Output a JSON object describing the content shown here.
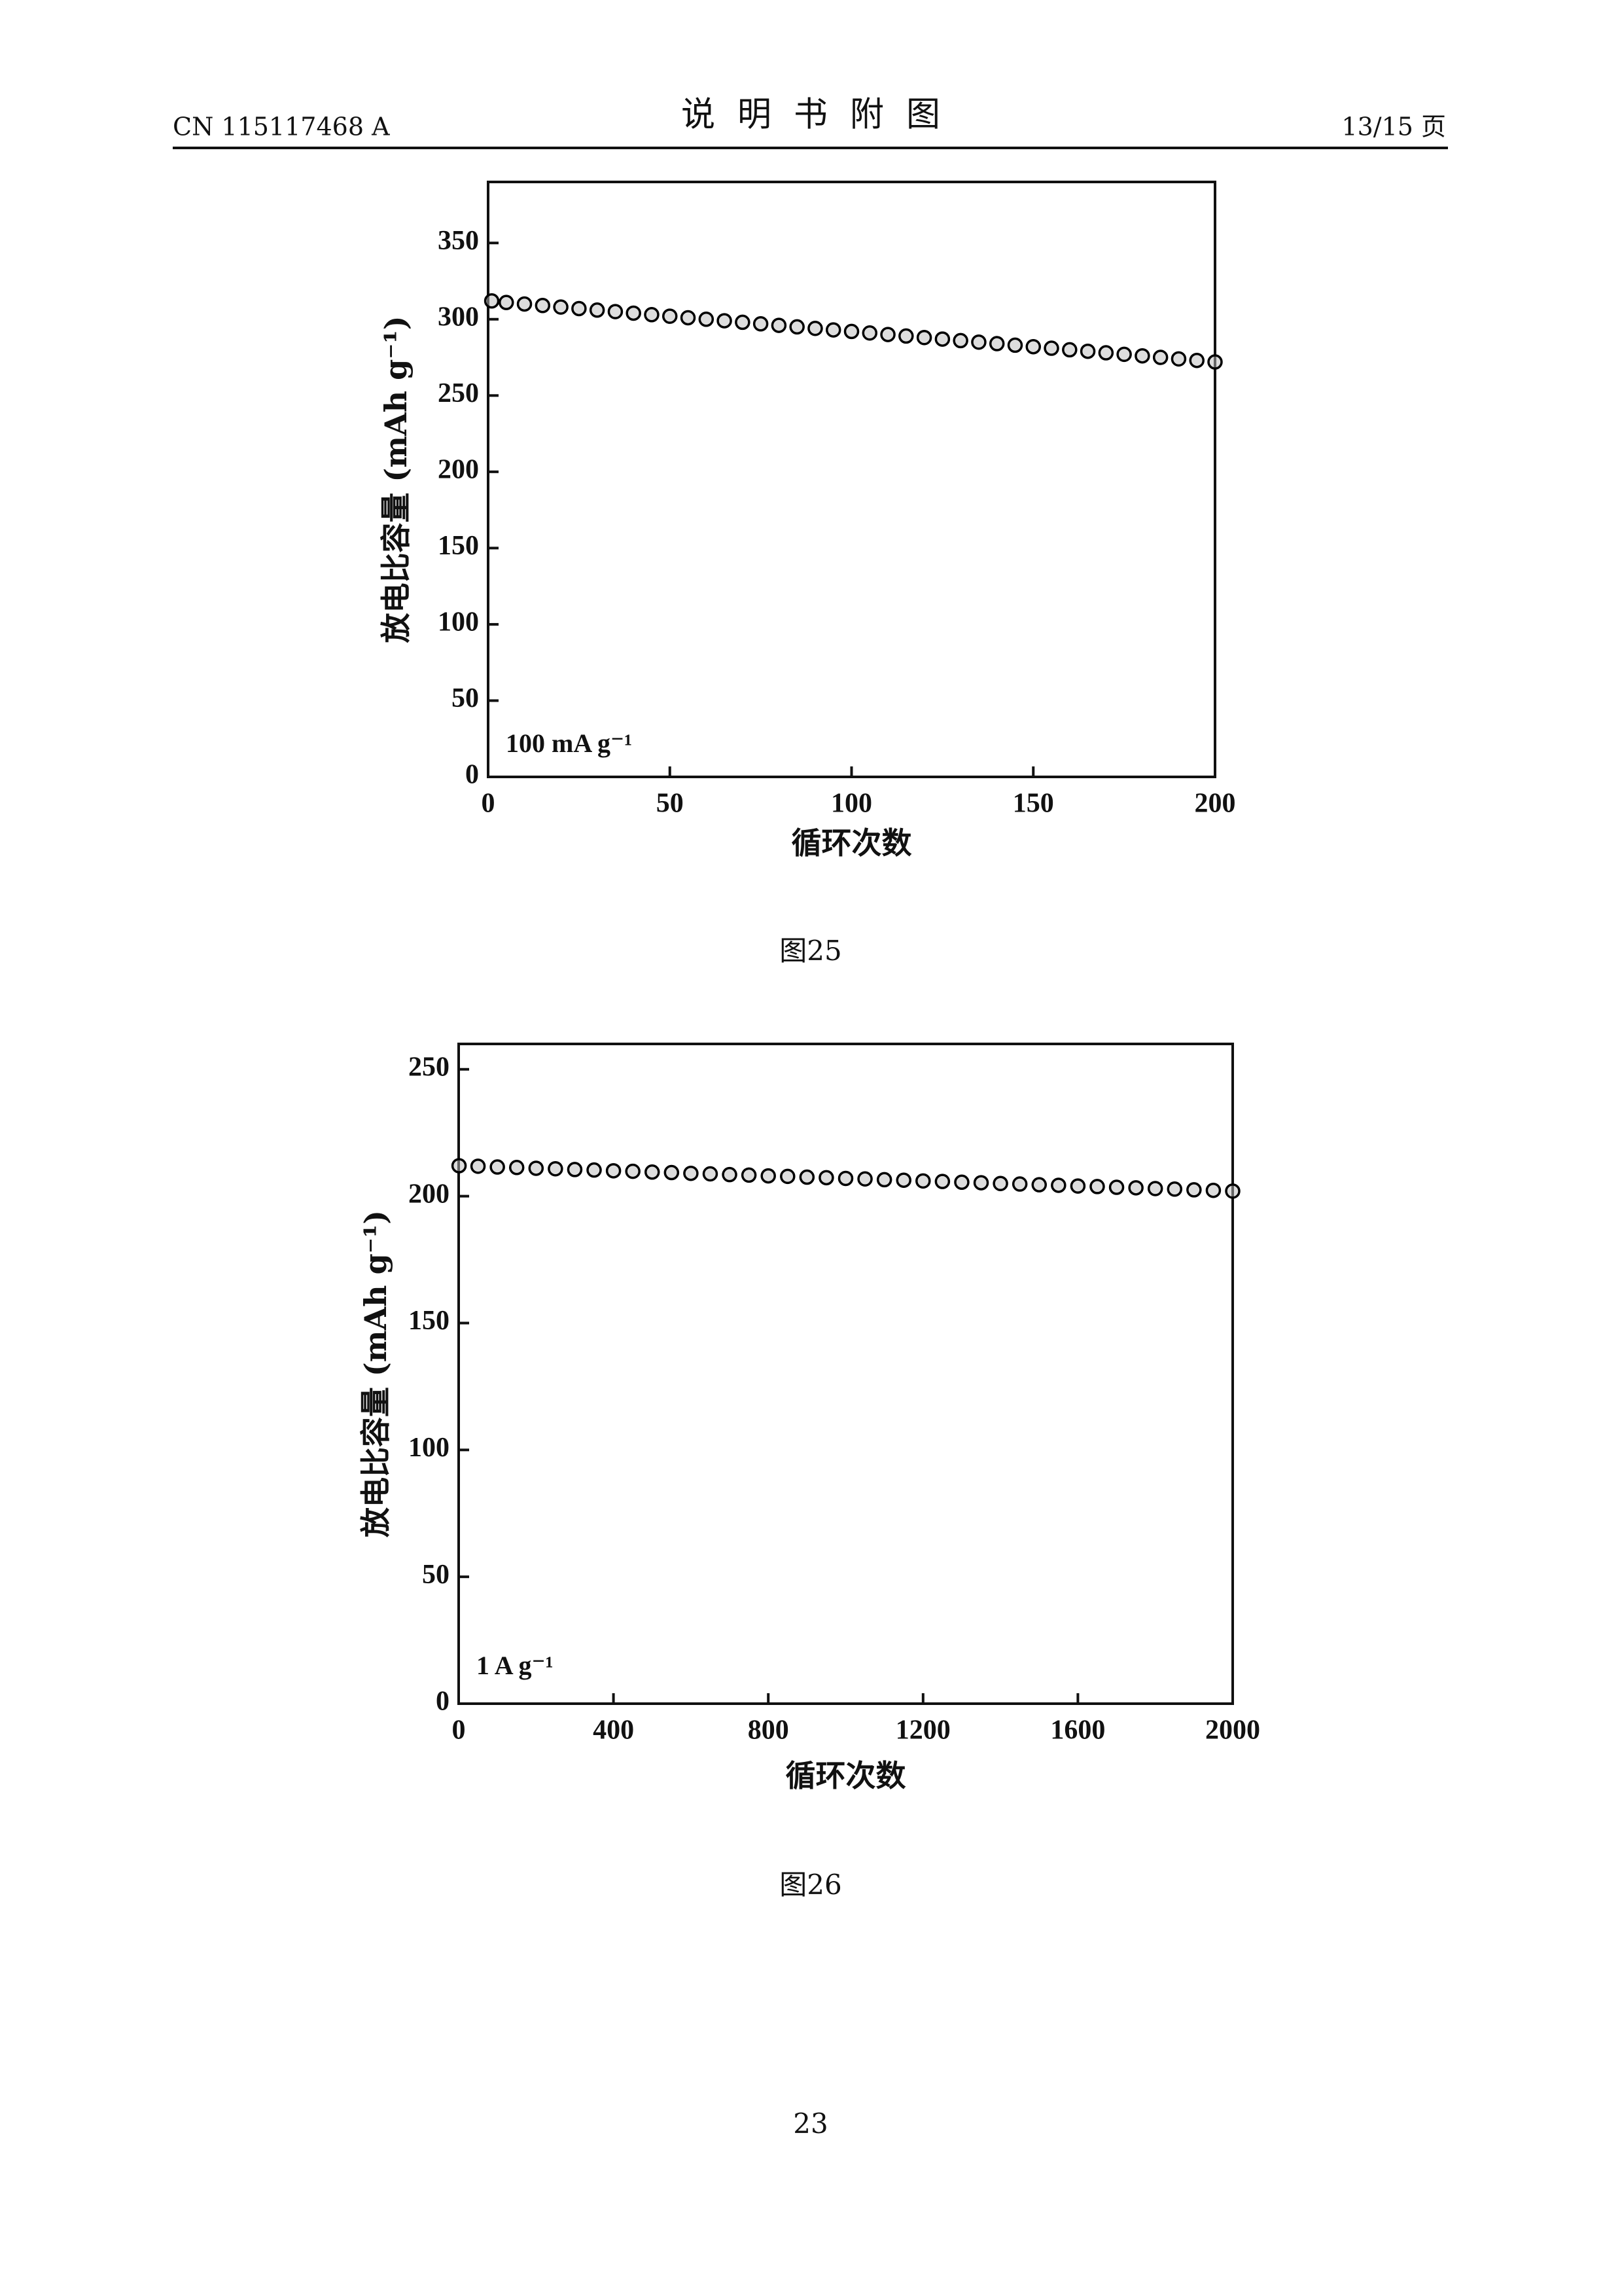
{
  "header": {
    "left": "CN 115117468 A",
    "title": "说明书附图",
    "right": "13/15 页"
  },
  "chart_data": [
    {
      "type": "scatter",
      "xlabel": "循环次数",
      "ylabel": "放电比容量 (mAh g⁻¹)",
      "annotation": "100 mA g⁻¹",
      "color": "#000000",
      "x": [
        1,
        5,
        10,
        15,
        20,
        25,
        30,
        35,
        40,
        45,
        50,
        55,
        60,
        65,
        70,
        75,
        80,
        85,
        90,
        95,
        100,
        105,
        110,
        115,
        120,
        125,
        130,
        135,
        140,
        145,
        150,
        155,
        160,
        165,
        170,
        175,
        180,
        185,
        190,
        195,
        200
      ],
      "values": [
        312,
        311,
        310,
        309,
        308,
        307,
        306,
        305,
        304,
        303,
        302,
        301,
        300,
        299,
        298,
        297,
        296,
        295,
        294,
        293,
        292,
        291,
        290,
        289,
        288,
        287,
        286,
        285,
        284,
        283,
        282,
        281,
        280,
        279,
        278,
        277,
        276,
        275,
        274,
        273,
        272
      ],
      "xlim": [
        0,
        200
      ],
      "xticks": [
        0,
        50,
        100,
        150,
        200
      ],
      "ylim": [
        0,
        390
      ],
      "yticks": [
        0,
        50,
        100,
        150,
        200,
        250,
        300,
        350
      ]
    },
    {
      "type": "scatter",
      "xlabel": "循环次数",
      "ylabel": "放电比容量 (mAh g⁻¹)",
      "annotation": "1 A g⁻¹",
      "color": "#000000",
      "x": [
        1,
        50,
        100,
        150,
        200,
        250,
        300,
        350,
        400,
        450,
        500,
        550,
        600,
        650,
        700,
        750,
        800,
        850,
        900,
        950,
        1000,
        1050,
        1100,
        1150,
        1200,
        1250,
        1300,
        1350,
        1400,
        1450,
        1500,
        1550,
        1600,
        1650,
        1700,
        1750,
        1800,
        1850,
        1900,
        1950,
        2000
      ],
      "values": [
        212,
        211.8,
        211.5,
        211.3,
        211,
        210.8,
        210.5,
        210.3,
        210,
        209.8,
        209.5,
        209.3,
        209,
        208.8,
        208.5,
        208.3,
        208,
        207.8,
        207.5,
        207.3,
        207,
        206.8,
        206.5,
        206.3,
        206,
        205.8,
        205.5,
        205.3,
        205,
        204.8,
        204.5,
        204.3,
        204,
        203.8,
        203.5,
        203.3,
        203,
        202.8,
        202.5,
        202.3,
        202
      ],
      "xlim": [
        0,
        2000
      ],
      "xticks": [
        0,
        400,
        800,
        1200,
        1600,
        2000
      ],
      "ylim": [
        0,
        260
      ],
      "yticks": [
        0,
        50,
        100,
        150,
        200,
        250
      ]
    }
  ],
  "captions": [
    "图25",
    "图26"
  ],
  "page_number": "23"
}
